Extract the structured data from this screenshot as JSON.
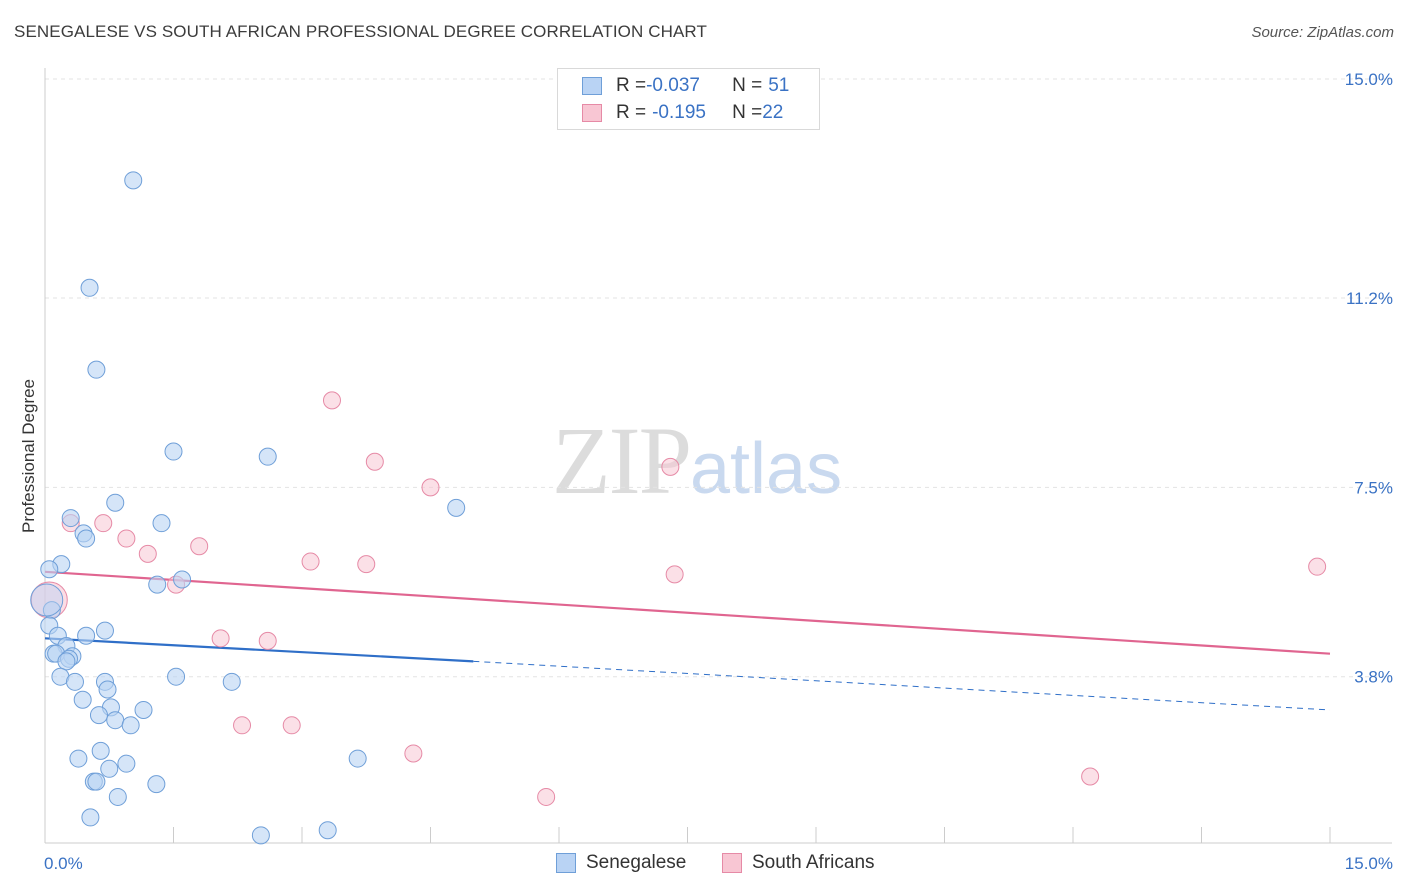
{
  "title": "SENEGALESE VS SOUTH AFRICAN PROFESSIONAL DEGREE CORRELATION CHART",
  "source": "Source: ZipAtlas.com",
  "watermark": {
    "zip": "ZIP",
    "atlas": "atlas"
  },
  "legend_top": {
    "rows": [
      {
        "r_label": "R = ",
        "r_value": "-0.037",
        "n_label": "N = ",
        "n_value": "51"
      },
      {
        "r_label": "R = ",
        "r_value": "-0.195",
        "n_label": "N = ",
        "n_value": "22"
      }
    ]
  },
  "colors": {
    "senegalese_fill": "#b9d3f4",
    "senegalese_stroke": "#6f9fd8",
    "senegalese_line": "#2f6fc8",
    "south_african_fill": "#f8c6d3",
    "south_african_stroke": "#e68aa6",
    "south_african_line": "#e06590",
    "grid": "#e3e3e3",
    "axis_label": "#3a72c4"
  },
  "chart_data": {
    "type": "scatter",
    "title": "SENEGALESE VS SOUTH AFRICAN PROFESSIONAL DEGREE CORRELATION CHART",
    "xlabel": "",
    "ylabel": "Professional Degree",
    "xlim": [
      0,
      15
    ],
    "ylim": [
      0,
      15
    ],
    "x_tick_labels": [
      "0.0%",
      "15.0%"
    ],
    "y_ticks": [
      3.8,
      7.5,
      11.2,
      15.0
    ],
    "y_tick_labels": [
      "3.8%",
      "7.5%",
      "11.2%",
      "15.0%"
    ],
    "grid": "horizontal dashed",
    "legend_position": "bottom",
    "series": [
      {
        "name": "Senegalese",
        "r": -0.037,
        "n": 51,
        "points": [
          [
            1.03,
            13.5
          ],
          [
            0.52,
            11.4
          ],
          [
            0.6,
            9.8
          ],
          [
            1.5,
            8.2
          ],
          [
            2.6,
            8.1
          ],
          [
            0.82,
            7.2
          ],
          [
            4.8,
            7.1
          ],
          [
            0.3,
            6.9
          ],
          [
            1.36,
            6.8
          ],
          [
            0.45,
            6.6
          ],
          [
            0.48,
            6.5
          ],
          [
            0.19,
            6.0
          ],
          [
            0.05,
            5.9
          ],
          [
            1.6,
            5.7
          ],
          [
            1.31,
            5.6
          ],
          [
            0.08,
            5.1
          ],
          [
            0.05,
            4.8
          ],
          [
            0.7,
            4.7
          ],
          [
            0.48,
            4.6
          ],
          [
            0.15,
            4.6
          ],
          [
            0.25,
            4.4
          ],
          [
            0.1,
            4.25
          ],
          [
            0.13,
            4.25
          ],
          [
            0.32,
            4.2
          ],
          [
            0.28,
            4.15
          ],
          [
            0.25,
            4.1
          ],
          [
            0.18,
            3.8
          ],
          [
            0.35,
            3.7
          ],
          [
            0.7,
            3.7
          ],
          [
            1.53,
            3.8
          ],
          [
            2.18,
            3.7
          ],
          [
            0.73,
            3.55
          ],
          [
            0.44,
            3.35
          ],
          [
            0.77,
            3.2
          ],
          [
            1.15,
            3.15
          ],
          [
            0.63,
            3.05
          ],
          [
            0.82,
            2.95
          ],
          [
            1.0,
            2.85
          ],
          [
            0.65,
            2.35
          ],
          [
            0.39,
            2.2
          ],
          [
            0.95,
            2.1
          ],
          [
            0.75,
            2.0
          ],
          [
            3.65,
            2.2
          ],
          [
            0.57,
            1.75
          ],
          [
            0.6,
            1.75
          ],
          [
            1.3,
            1.7
          ],
          [
            0.85,
            1.45
          ],
          [
            0.53,
            1.05
          ],
          [
            3.3,
            0.8
          ],
          [
            2.52,
            0.7
          ],
          [
            0.02,
            5.3
          ]
        ],
        "trend": {
          "solid": [
            [
              0.0,
              4.55
            ],
            [
              5.0,
              4.1
            ]
          ],
          "dashed": [
            [
              5.0,
              4.1
            ],
            [
              15.0,
              3.15
            ]
          ]
        }
      },
      {
        "name": "South Africans",
        "r": -0.195,
        "n": 22,
        "points": [
          [
            3.35,
            9.2
          ],
          [
            3.85,
            8.0
          ],
          [
            7.3,
            7.9
          ],
          [
            4.5,
            7.5
          ],
          [
            0.3,
            6.8
          ],
          [
            0.68,
            6.8
          ],
          [
            0.95,
            6.5
          ],
          [
            1.2,
            6.2
          ],
          [
            1.8,
            6.35
          ],
          [
            3.1,
            6.05
          ],
          [
            3.75,
            6.0
          ],
          [
            14.85,
            5.95
          ],
          [
            7.35,
            5.8
          ],
          [
            1.53,
            5.6
          ],
          [
            2.05,
            4.55
          ],
          [
            2.6,
            4.5
          ],
          [
            2.3,
            2.85
          ],
          [
            2.88,
            2.85
          ],
          [
            4.3,
            2.3
          ],
          [
            12.2,
            1.85
          ],
          [
            5.85,
            1.45
          ],
          [
            0.05,
            5.3
          ]
        ],
        "trend": {
          "solid": [
            [
              0.0,
              5.85
            ],
            [
              15.0,
              4.25
            ]
          ]
        }
      }
    ]
  },
  "bottom_legend": {
    "senegalese": "Senegalese",
    "south_africans": "South Africans"
  }
}
